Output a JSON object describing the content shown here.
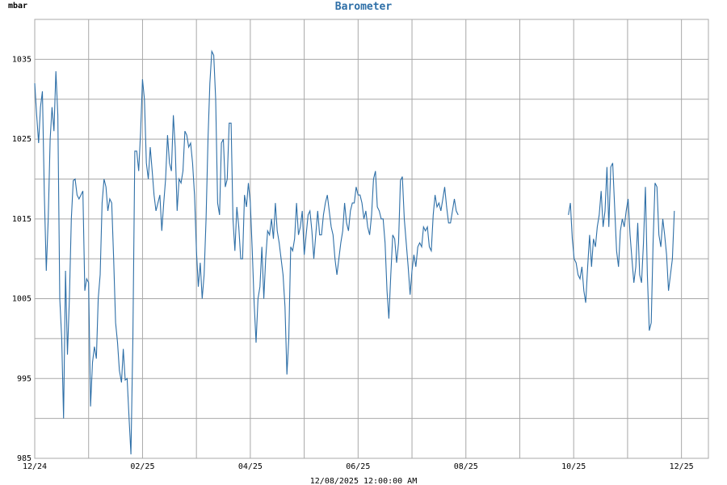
{
  "chart_data": {
    "type": "line",
    "title": "Barometer",
    "ylabel": "mbar",
    "xlabel": "12/08/2025 12:00:00 AM",
    "ylim": [
      985,
      1040
    ],
    "y_ticks": [
      985,
      995,
      1005,
      1015,
      1025,
      1035
    ],
    "x_ticks": [
      "12/24",
      "02/25",
      "04/25",
      "06/25",
      "08/25",
      "10/25",
      "12/25"
    ],
    "x_range_days": [
      0,
      385
    ],
    "grid": true,
    "line_color": "#2e6fa7",
    "series": [
      {
        "values": [
          [
            0.0,
            1032
          ],
          [
            1.1,
            1028
          ],
          [
            2.2,
            1024.5
          ],
          [
            3.3,
            1029
          ],
          [
            4.4,
            1031
          ],
          [
            5.5,
            1018
          ],
          [
            6.6,
            1008.5
          ],
          [
            7.7,
            1015
          ],
          [
            8.8,
            1025
          ],
          [
            9.9,
            1029
          ],
          [
            11.0,
            1026
          ],
          [
            12.1,
            1033.5
          ],
          [
            13.2,
            1028
          ],
          [
            14.3,
            1005
          ],
          [
            15.4,
            1000
          ],
          [
            16.5,
            990
          ],
          [
            17.6,
            1008.5
          ],
          [
            18.7,
            998
          ],
          [
            19.8,
            1005
          ],
          [
            20.9,
            1015
          ],
          [
            22.0,
            1019.8
          ],
          [
            23.1,
            1020
          ],
          [
            24.2,
            1018
          ],
          [
            25.3,
            1017.5
          ],
          [
            26.4,
            1018
          ],
          [
            27.5,
            1018.5
          ],
          [
            28.6,
            1006
          ],
          [
            29.7,
            1007.5
          ],
          [
            30.8,
            1007
          ],
          [
            31.9,
            991.5
          ],
          [
            33.0,
            997
          ],
          [
            34.1,
            999
          ],
          [
            35.2,
            997.5
          ],
          [
            36.3,
            1005
          ],
          [
            37.4,
            1008
          ],
          [
            38.5,
            1017
          ],
          [
            39.6,
            1020
          ],
          [
            40.7,
            1019
          ],
          [
            41.8,
            1016
          ],
          [
            42.9,
            1017.5
          ],
          [
            44.0,
            1017
          ],
          [
            45.1,
            1010
          ],
          [
            46.2,
            1002
          ],
          [
            47.3,
            999.5
          ],
          [
            48.4,
            996
          ],
          [
            49.6,
            994.5
          ],
          [
            50.6,
            998.7
          ],
          [
            51.7,
            994.8
          ],
          [
            52.8,
            995
          ],
          [
            53.9,
            990
          ],
          [
            55.0,
            985.5
          ],
          [
            56.1,
            1000
          ],
          [
            57.2,
            1023.5
          ],
          [
            58.3,
            1023.5
          ],
          [
            59.4,
            1021
          ],
          [
            60.5,
            1026
          ],
          [
            61.6,
            1032.5
          ],
          [
            62.7,
            1030
          ],
          [
            63.8,
            1022
          ],
          [
            64.9,
            1020
          ],
          [
            66.0,
            1024
          ],
          [
            67.1,
            1021
          ],
          [
            68.2,
            1018
          ],
          [
            69.3,
            1016
          ],
          [
            70.4,
            1017
          ],
          [
            71.5,
            1018
          ],
          [
            72.6,
            1013.5
          ],
          [
            73.7,
            1017
          ],
          [
            74.8,
            1020
          ],
          [
            75.9,
            1025.5
          ],
          [
            77.0,
            1022
          ],
          [
            78.1,
            1021
          ],
          [
            79.2,
            1028
          ],
          [
            80.3,
            1024
          ],
          [
            81.4,
            1016
          ],
          [
            82.5,
            1020
          ],
          [
            83.6,
            1019.5
          ],
          [
            84.7,
            1021
          ],
          [
            85.8,
            1026
          ],
          [
            86.9,
            1025.5
          ],
          [
            88.0,
            1024
          ],
          [
            89.1,
            1024.5
          ],
          [
            90.2,
            1022
          ],
          [
            91.3,
            1018
          ],
          [
            92.4,
            1011
          ],
          [
            93.5,
            1006.5
          ],
          [
            94.6,
            1009.5
          ],
          [
            95.7,
            1005
          ],
          [
            96.8,
            1008
          ],
          [
            97.9,
            1015
          ],
          [
            99.0,
            1025
          ],
          [
            100.1,
            1032
          ],
          [
            101.2,
            1036
          ],
          [
            102.3,
            1035.5
          ],
          [
            103.4,
            1030
          ],
          [
            104.5,
            1017
          ],
          [
            105.6,
            1015.5
          ],
          [
            106.7,
            1024.5
          ],
          [
            107.8,
            1025
          ],
          [
            108.9,
            1019
          ],
          [
            110.0,
            1020
          ],
          [
            111.1,
            1027
          ],
          [
            112.2,
            1027
          ],
          [
            113.3,
            1015
          ],
          [
            114.4,
            1011
          ],
          [
            115.5,
            1016.5
          ],
          [
            116.6,
            1014
          ],
          [
            117.7,
            1010
          ],
          [
            118.8,
            1010
          ],
          [
            119.9,
            1018
          ],
          [
            121.0,
            1016.5
          ],
          [
            122.1,
            1019.5
          ],
          [
            123.2,
            1017
          ],
          [
            124.3,
            1011
          ],
          [
            125.4,
            1004.5
          ],
          [
            126.5,
            999.5
          ],
          [
            127.6,
            1005
          ],
          [
            128.7,
            1006.5
          ],
          [
            129.8,
            1011.5
          ],
          [
            130.9,
            1005
          ],
          [
            132.0,
            1010
          ],
          [
            133.1,
            1013.5
          ],
          [
            134.2,
            1013
          ],
          [
            135.3,
            1015
          ],
          [
            136.4,
            1012.5
          ],
          [
            137.5,
            1017
          ],
          [
            138.6,
            1013.5
          ],
          [
            139.7,
            1012
          ],
          [
            140.8,
            1010
          ],
          [
            141.9,
            1008
          ],
          [
            143.0,
            1004
          ],
          [
            144.1,
            995.5
          ],
          [
            145.2,
            1000
          ],
          [
            146.3,
            1011.5
          ],
          [
            147.4,
            1011
          ],
          [
            148.5,
            1012.5
          ],
          [
            149.6,
            1017
          ],
          [
            150.7,
            1013
          ],
          [
            151.8,
            1014
          ],
          [
            152.9,
            1016
          ],
          [
            154.0,
            1010.5
          ],
          [
            155.1,
            1013
          ],
          [
            156.2,
            1015.5
          ],
          [
            157.3,
            1016
          ],
          [
            158.4,
            1013.5
          ],
          [
            159.5,
            1010
          ],
          [
            160.6,
            1013
          ],
          [
            161.7,
            1016
          ],
          [
            162.8,
            1013
          ],
          [
            163.9,
            1013
          ],
          [
            165.0,
            1015.5
          ],
          [
            166.1,
            1017
          ],
          [
            167.2,
            1018
          ],
          [
            168.3,
            1016
          ],
          [
            169.4,
            1014
          ],
          [
            170.5,
            1013
          ],
          [
            171.6,
            1010
          ],
          [
            172.7,
            1008
          ],
          [
            173.8,
            1010
          ],
          [
            174.9,
            1012
          ],
          [
            176.0,
            1013.5
          ],
          [
            177.1,
            1017
          ],
          [
            178.2,
            1014.5
          ],
          [
            179.3,
            1013.5
          ],
          [
            180.4,
            1016
          ],
          [
            181.5,
            1017
          ],
          [
            182.6,
            1017
          ],
          [
            183.7,
            1019
          ],
          [
            184.8,
            1018
          ],
          [
            185.9,
            1018
          ],
          [
            187.0,
            1017
          ],
          [
            188.1,
            1015
          ],
          [
            189.2,
            1016
          ],
          [
            190.3,
            1014
          ],
          [
            191.4,
            1013
          ],
          [
            192.5,
            1015.5
          ],
          [
            193.6,
            1020
          ],
          [
            194.7,
            1021
          ],
          [
            195.8,
            1016.5
          ],
          [
            196.9,
            1016
          ],
          [
            198.0,
            1015
          ],
          [
            199.1,
            1015
          ],
          [
            200.2,
            1012
          ],
          [
            201.3,
            1006
          ],
          [
            202.4,
            1002.5
          ],
          [
            203.5,
            1008
          ],
          [
            204.6,
            1013
          ],
          [
            205.7,
            1012.5
          ],
          [
            206.8,
            1009.5
          ],
          [
            207.9,
            1012
          ],
          [
            209.0,
            1019.8
          ],
          [
            210.1,
            1020.3
          ],
          [
            211.2,
            1015
          ],
          [
            212.3,
            1012
          ],
          [
            213.4,
            1009
          ],
          [
            214.5,
            1005.5
          ],
          [
            215.6,
            1008.5
          ],
          [
            216.7,
            1010.5
          ],
          [
            217.8,
            1009
          ],
          [
            218.9,
            1011.5
          ],
          [
            220.0,
            1012
          ],
          [
            221.1,
            1011.5
          ],
          [
            222.2,
            1014
          ],
          [
            223.3,
            1013.5
          ],
          [
            224.4,
            1014
          ],
          [
            225.5,
            1011.5
          ],
          [
            226.6,
            1011
          ],
          [
            227.7,
            1015.5
          ],
          [
            228.8,
            1018
          ],
          [
            229.9,
            1016.5
          ],
          [
            231.0,
            1017
          ],
          [
            232.1,
            1016
          ],
          [
            233.2,
            1017.5
          ],
          [
            234.3,
            1019
          ],
          [
            235.4,
            1016.5
          ],
          [
            236.5,
            1014.5
          ],
          [
            237.6,
            1014.5
          ],
          [
            238.7,
            1016
          ],
          [
            239.8,
            1017.5
          ],
          [
            240.9,
            1016
          ],
          [
            242.0,
            1015.5
          ],
          null,
          [
            305.0,
            1015.5
          ],
          [
            306.1,
            1017
          ],
          [
            307.2,
            1012.5
          ],
          [
            308.3,
            1010
          ],
          [
            309.4,
            1009.5
          ],
          [
            310.5,
            1008
          ],
          [
            311.6,
            1007.5
          ],
          [
            312.7,
            1009
          ],
          [
            313.8,
            1006
          ],
          [
            314.9,
            1004.5
          ],
          [
            316.0,
            1009
          ],
          [
            317.1,
            1013
          ],
          [
            318.2,
            1009
          ],
          [
            319.3,
            1012.5
          ],
          [
            320.4,
            1011.5
          ],
          [
            321.5,
            1014
          ],
          [
            322.6,
            1015.5
          ],
          [
            323.7,
            1018.5
          ],
          [
            324.8,
            1014
          ],
          [
            325.9,
            1016
          ],
          [
            327.0,
            1021.5
          ],
          [
            328.1,
            1014
          ],
          [
            329.2,
            1021.5
          ],
          [
            330.3,
            1022
          ],
          [
            331.4,
            1016.5
          ],
          [
            332.5,
            1011
          ],
          [
            333.6,
            1009
          ],
          [
            334.7,
            1013.5
          ],
          [
            335.8,
            1015
          ],
          [
            336.9,
            1014
          ],
          [
            338.0,
            1016
          ],
          [
            339.1,
            1017.5
          ],
          [
            340.2,
            1013
          ],
          [
            341.3,
            1010
          ],
          [
            342.4,
            1007
          ],
          [
            343.5,
            1009
          ],
          [
            344.6,
            1014.5
          ],
          [
            345.7,
            1008
          ],
          [
            346.8,
            1007
          ],
          [
            347.9,
            1012
          ],
          [
            349.0,
            1019
          ],
          [
            350.1,
            1008
          ],
          [
            351.2,
            1001
          ],
          [
            352.3,
            1002
          ],
          [
            353.4,
            1012
          ],
          [
            354.5,
            1019.5
          ],
          [
            355.6,
            1019
          ],
          [
            356.7,
            1013
          ],
          [
            357.8,
            1011.5
          ],
          [
            358.9,
            1015
          ],
          [
            360.0,
            1013
          ],
          [
            361.1,
            1010.5
          ],
          [
            362.2,
            1006
          ],
          [
            363.3,
            1008
          ],
          [
            364.4,
            1010
          ],
          [
            365.5,
            1016
          ]
        ]
      }
    ]
  }
}
